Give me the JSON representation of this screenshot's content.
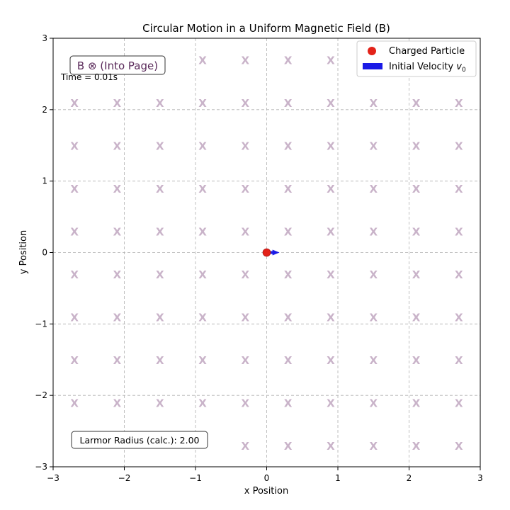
{
  "chart_data": {
    "type": "scatter",
    "title": "Circular Motion in a Uniform Magnetic Field (B)",
    "xlabel": "x Position",
    "ylabel": "y Position",
    "xlim": [
      -3,
      3
    ],
    "ylim": [
      -3,
      3
    ],
    "x_ticks": [
      -3,
      -2,
      -1,
      0,
      1,
      2,
      3
    ],
    "y_ticks": [
      -3,
      -2,
      -1,
      0,
      1,
      2,
      3
    ],
    "x_tick_labels": [
      "−3",
      "−2",
      "−1",
      "0",
      "1",
      "2",
      "3"
    ],
    "y_tick_labels": [
      "−3",
      "−2",
      "−1",
      "0",
      "1",
      "2",
      "3"
    ],
    "grid": true,
    "legend_position": "top-right",
    "field_marker": "X",
    "field_marker_color": "#c9b3c9",
    "field_grid_x": [
      -2.7,
      -2.1,
      -1.5,
      -0.9,
      -0.3,
      0.3,
      0.9,
      1.5,
      2.1,
      2.7
    ],
    "field_grid_y": [
      2.7,
      2.1,
      1.5,
      0.9,
      0.3,
      -0.3,
      -0.9,
      -1.5,
      -2.1,
      -2.7
    ],
    "series": [
      {
        "name": "Charged Particle",
        "kind": "point",
        "x": [
          0
        ],
        "y": [
          0
        ],
        "color": "#e32219"
      },
      {
        "name": "Initial Velocity v0",
        "kind": "arrow",
        "x": 0,
        "y": 0,
        "dx": 0.18,
        "dy": 0,
        "color": "#1a1ae6"
      }
    ],
    "annotations": {
      "field_label": "B ⊗ (Into Page)",
      "time_label": "Time = 0.01s",
      "radius_label": "Larmor Radius (calc.): 2.00"
    },
    "legend": {
      "particle_label": "Charged Particle",
      "velocity_label": "Initial Velocity ",
      "velocity_sym": "v",
      "velocity_sub": "0"
    }
  }
}
